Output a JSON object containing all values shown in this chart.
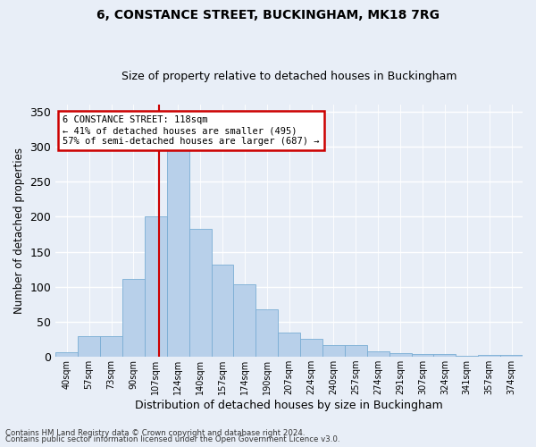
{
  "title1": "6, CONSTANCE STREET, BUCKINGHAM, MK18 7RG",
  "title2": "Size of property relative to detached houses in Buckingham",
  "xlabel": "Distribution of detached houses by size in Buckingham",
  "ylabel": "Number of detached properties",
  "categories": [
    "40sqm",
    "57sqm",
    "73sqm",
    "90sqm",
    "107sqm",
    "124sqm",
    "140sqm",
    "157sqm",
    "174sqm",
    "190sqm",
    "207sqm",
    "224sqm",
    "240sqm",
    "257sqm",
    "274sqm",
    "291sqm",
    "307sqm",
    "324sqm",
    "341sqm",
    "357sqm",
    "374sqm"
  ],
  "values": [
    6,
    29,
    29,
    111,
    200,
    295,
    182,
    131,
    103,
    68,
    35,
    26,
    17,
    17,
    8,
    5,
    4,
    4,
    1,
    3,
    3
  ],
  "bar_color": "#b8d0ea",
  "bar_edge_color": "#7aadd4",
  "background_color": "#e8eef7",
  "grid_color": "#ffffff",
  "annotation_text": "6 CONSTANCE STREET: 118sqm\n← 41% of detached houses are smaller (495)\n57% of semi-detached houses are larger (687) →",
  "annotation_box_color": "#ffffff",
  "annotation_box_edge": "#cc0000",
  "vline_color": "#cc0000",
  "ylim": [
    0,
    360
  ],
  "yticks": [
    0,
    50,
    100,
    150,
    200,
    250,
    300,
    350
  ],
  "footer1": "Contains HM Land Registry data © Crown copyright and database right 2024.",
  "footer2": "Contains public sector information licensed under the Open Government Licence v3.0.",
  "title_fontsize": 10,
  "subtitle_fontsize": 9
}
